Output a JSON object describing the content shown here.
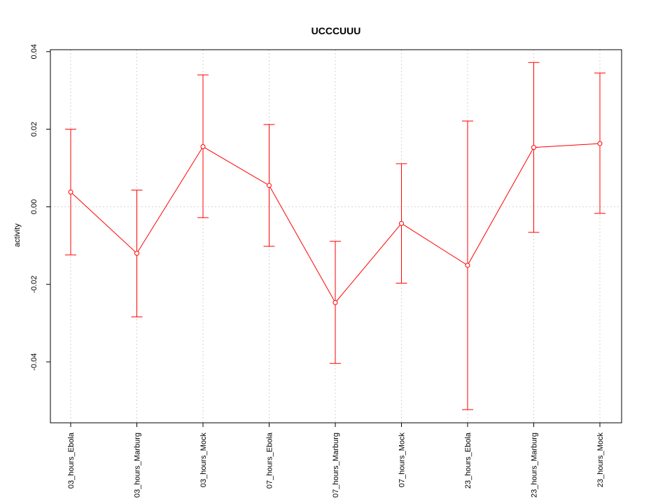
{
  "chart_data": {
    "type": "line",
    "title": "UCCCUUU",
    "xlabel": "",
    "ylabel": "activity",
    "categories": [
      "03_hours_Ebola",
      "03_hours_Marburg",
      "03_hours_Mock",
      "07_hours_Ebola",
      "07_hours_Marburg",
      "07_hours_Mock",
      "23_hours_Ebola",
      "23_hours_Marburg",
      "23_hours_Mock"
    ],
    "values": [
      0.0038,
      -0.012,
      0.0155,
      0.0055,
      -0.0247,
      -0.0043,
      -0.0151,
      0.0153,
      0.0163
    ],
    "error_upper": [
      0.02,
      0.0043,
      0.034,
      0.0212,
      -0.0089,
      0.0111,
      0.0221,
      0.0372,
      0.0345
    ],
    "error_lower": [
      -0.0124,
      -0.0284,
      -0.0028,
      -0.0102,
      -0.0404,
      -0.0197,
      -0.0523,
      -0.0066,
      -0.0017
    ],
    "yticks": [
      -0.04,
      -0.02,
      0.0,
      0.02,
      0.04
    ],
    "ytick_labels": [
      "-0.04",
      "-0.02",
      "0.00",
      "0.02",
      "0.04"
    ],
    "ylim": [
      -0.0557,
      0.0405
    ],
    "grid": true,
    "color": "#ff0000",
    "grid_color": "#d3d3d3"
  }
}
